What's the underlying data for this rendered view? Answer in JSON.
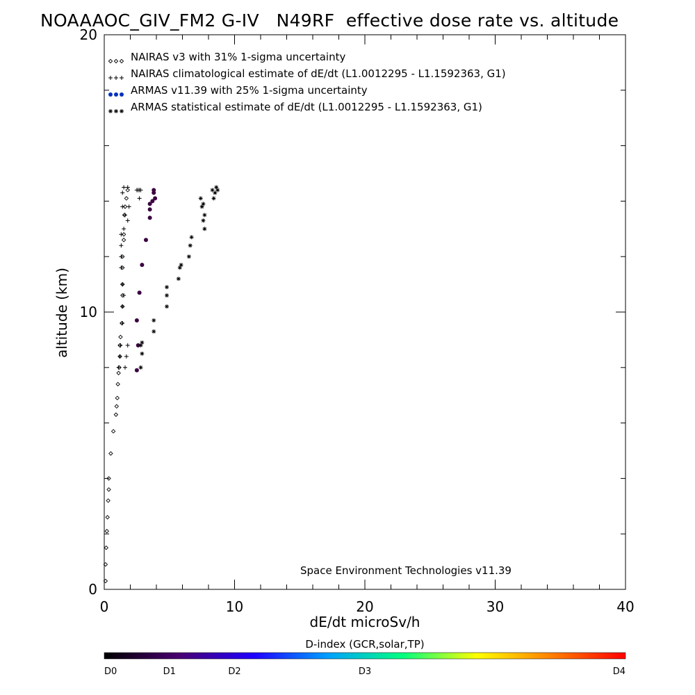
{
  "chart_data": {
    "type": "scatter",
    "title": "NOAAAOC_GIV_FM2 G-IV   N49RF  effective dose rate vs. altitude",
    "xlabel": "dE/dt microSv/h",
    "ylabel": "altitude (km)",
    "xlim": [
      0,
      40
    ],
    "ylim": [
      0,
      20
    ],
    "x_ticks": [
      {
        "value": 0,
        "label": "0"
      },
      {
        "value": 10,
        "label": "10"
      },
      {
        "value": 20,
        "label": "20"
      },
      {
        "value": 30,
        "label": "30"
      },
      {
        "value": 40,
        "label": "40"
      }
    ],
    "y_ticks": [
      {
        "value": 0,
        "label": "0"
      },
      {
        "value": 10,
        "label": "10"
      },
      {
        "value": 20,
        "label": "20"
      }
    ],
    "legend_placement": "top-left",
    "annotation": "Space Environment Technologies v11.39",
    "series": [
      {
        "name": "NAIRAS v3 with 31% 1-sigma uncertainty",
        "marker": "diamond",
        "color": "#000000",
        "points": [
          [
            0.1,
            0.3
          ],
          [
            0.1,
            0.9
          ],
          [
            0.15,
            1.5
          ],
          [
            0.2,
            2.1
          ],
          [
            0.25,
            2.6
          ],
          [
            0.3,
            3.2
          ],
          [
            0.35,
            3.6
          ],
          [
            0.35,
            4.0
          ],
          [
            0.5,
            4.9
          ],
          [
            0.7,
            5.7
          ],
          [
            0.9,
            6.3
          ],
          [
            0.95,
            6.6
          ],
          [
            1.0,
            6.9
          ],
          [
            1.05,
            7.4
          ],
          [
            1.1,
            7.8
          ],
          [
            1.15,
            8.0
          ],
          [
            1.2,
            8.4
          ],
          [
            1.2,
            8.8
          ],
          [
            1.25,
            9.1
          ],
          [
            1.35,
            9.6
          ],
          [
            1.4,
            10.2
          ],
          [
            1.4,
            10.6
          ],
          [
            1.4,
            11.0
          ],
          [
            1.4,
            11.6
          ],
          [
            1.4,
            12.0
          ],
          [
            1.5,
            12.6
          ],
          [
            1.5,
            12.8
          ],
          [
            1.55,
            13.5
          ],
          [
            1.6,
            13.8
          ],
          [
            1.7,
            14.1
          ],
          [
            1.8,
            14.4
          ]
        ]
      },
      {
        "name": "NAIRAS climatological estimate of dE/dt (L1.0012295 - L1.1592363, G1)",
        "marker": "plus",
        "color": "#000000",
        "points": [
          [
            1.1,
            8.0
          ],
          [
            1.6,
            8.0
          ],
          [
            1.2,
            8.4
          ],
          [
            1.7,
            8.4
          ],
          [
            1.25,
            8.8
          ],
          [
            1.8,
            8.8
          ],
          [
            1.4,
            9.6
          ],
          [
            1.4,
            10.2
          ],
          [
            1.5,
            10.6
          ],
          [
            1.4,
            11.0
          ],
          [
            1.3,
            11.6
          ],
          [
            1.3,
            12.0
          ],
          [
            1.3,
            12.4
          ],
          [
            1.3,
            12.8
          ],
          [
            1.5,
            13.0
          ],
          [
            1.8,
            13.3
          ],
          [
            1.6,
            13.5
          ],
          [
            1.4,
            13.8
          ],
          [
            1.9,
            13.8
          ],
          [
            1.4,
            14.3
          ],
          [
            1.8,
            14.5
          ],
          [
            2.7,
            14.1
          ],
          [
            2.5,
            14.4
          ],
          [
            2.6,
            14.4
          ],
          [
            2.7,
            14.4
          ],
          [
            2.8,
            14.4
          ],
          [
            1.5,
            14.5
          ]
        ]
      },
      {
        "name": "ARMAS v11.39 with 25% 1-sigma uncertainty",
        "marker": "dot",
        "color": "#3a0040",
        "legend_color": "#0030c0",
        "points": [
          [
            2.5,
            7.9
          ],
          [
            2.6,
            8.8
          ],
          [
            2.5,
            9.7
          ],
          [
            2.7,
            10.7
          ],
          [
            2.9,
            11.7
          ],
          [
            3.2,
            12.6
          ],
          [
            3.5,
            13.4
          ],
          [
            3.5,
            13.7
          ],
          [
            3.5,
            13.9
          ],
          [
            3.7,
            14.0
          ],
          [
            3.9,
            14.1
          ],
          [
            3.8,
            14.3
          ],
          [
            3.8,
            14.4
          ]
        ]
      },
      {
        "name": "ARMAS statistical estimate of dE/dt (L1.0012295 - L1.1592363, G1)",
        "marker": "asterisk",
        "color": "#000000",
        "points": [
          [
            2.8,
            8.0
          ],
          [
            2.9,
            8.5
          ],
          [
            2.8,
            8.8
          ],
          [
            2.9,
            8.9
          ],
          [
            3.8,
            9.3
          ],
          [
            3.8,
            9.7
          ],
          [
            4.8,
            10.2
          ],
          [
            4.8,
            10.6
          ],
          [
            4.8,
            10.9
          ],
          [
            5.7,
            11.2
          ],
          [
            5.8,
            11.6
          ],
          [
            5.9,
            11.7
          ],
          [
            6.5,
            12.0
          ],
          [
            6.6,
            12.4
          ],
          [
            6.7,
            12.7
          ],
          [
            7.7,
            13.0
          ],
          [
            7.6,
            13.3
          ],
          [
            7.7,
            13.5
          ],
          [
            7.5,
            13.8
          ],
          [
            7.6,
            13.9
          ],
          [
            7.4,
            14.1
          ],
          [
            8.4,
            14.1
          ],
          [
            8.5,
            14.3
          ],
          [
            8.7,
            14.4
          ],
          [
            8.3,
            14.4
          ],
          [
            8.6,
            14.5
          ]
        ]
      }
    ],
    "colorbar": {
      "title": "D-index (GCR,solar,TP)",
      "range": [
        0,
        4
      ],
      "labels": [
        {
          "value": 0,
          "label": "D0"
        },
        {
          "value": 0.5,
          "label": "D1"
        },
        {
          "value": 1,
          "label": "D2"
        },
        {
          "value": 2,
          "label": "D3"
        },
        {
          "value": 4,
          "label": "D4"
        }
      ],
      "colors": [
        "#000000",
        "#4a0070",
        "#2000ff",
        "#00a0ff",
        "#00ff80",
        "#ffff00",
        "#ff8000",
        "#ff0000"
      ]
    }
  }
}
